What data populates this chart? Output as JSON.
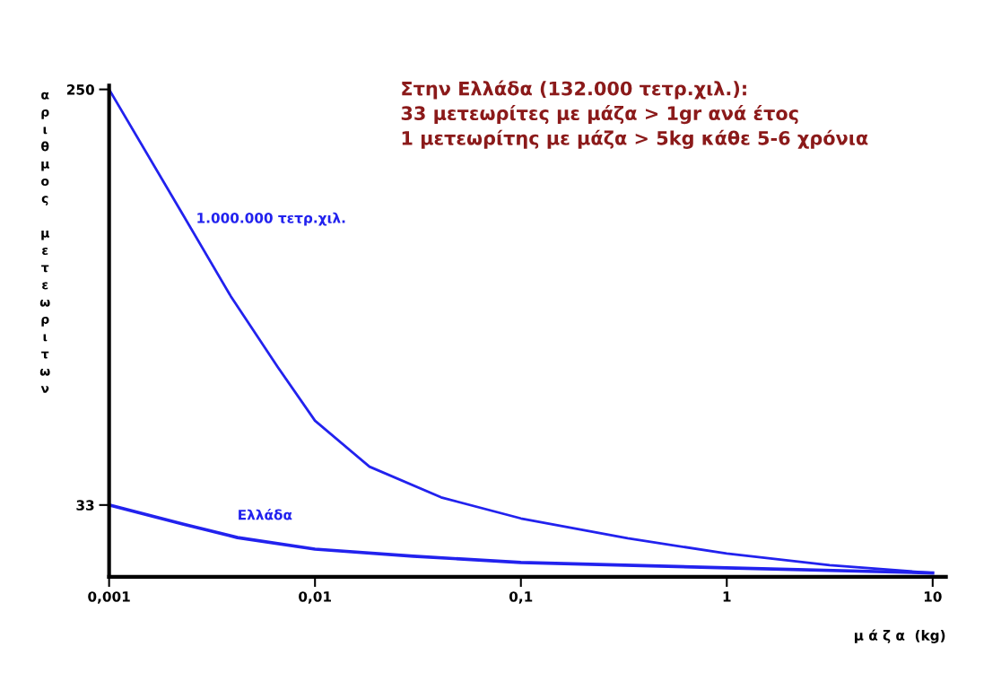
{
  "chart_data": {
    "type": "line",
    "log": "x",
    "xlabel": "μ ά ζ α  (kg)",
    "ylabel": "αριθμος μετεωριτων",
    "annotations": [
      "Στην Ελλάδα (132.000 τετρ.χιλ.):",
      "33 μετεωρίτες με μάζα > 1gr ανά έτος",
      "1 μετεωρίτης με μάζα > 5kg κάθε 5-6 χρόνια"
    ],
    "xlim": [
      0.001,
      11.6
    ],
    "ylim": [
      -4.5,
      252
    ],
    "xticks": [
      {
        "value": 0.001,
        "label": "0,001"
      },
      {
        "value": 0.01,
        "label": "0,01"
      },
      {
        "value": 0.1,
        "label": "0,1"
      },
      {
        "value": 1,
        "label": "1"
      },
      {
        "value": 10,
        "label": "10"
      }
    ],
    "yticks": [
      33,
      250
    ],
    "grid": false,
    "legend": false,
    "series": [
      {
        "name": "1.000.000 τετρ.χιλ.",
        "color": "#2222ee",
        "x": [
          0.001,
          0.0023,
          0.0039,
          0.0066,
          0.01,
          0.0184,
          0.041,
          0.1,
          0.33,
          1,
          3.16,
          10
        ],
        "values": [
          250,
          184,
          142,
          105,
          77,
          53,
          37,
          26,
          15.6,
          7.7,
          1.6,
          -2.5
        ]
      },
      {
        "name": "Ελλάδα",
        "color": "#2222ee",
        "x": [
          0.001,
          0.0023,
          0.0042,
          0.01,
          0.03,
          0.1,
          1,
          10
        ],
        "values": [
          33,
          23,
          16,
          10,
          6.3,
          3,
          0.2,
          -2.5
        ]
      }
    ]
  }
}
